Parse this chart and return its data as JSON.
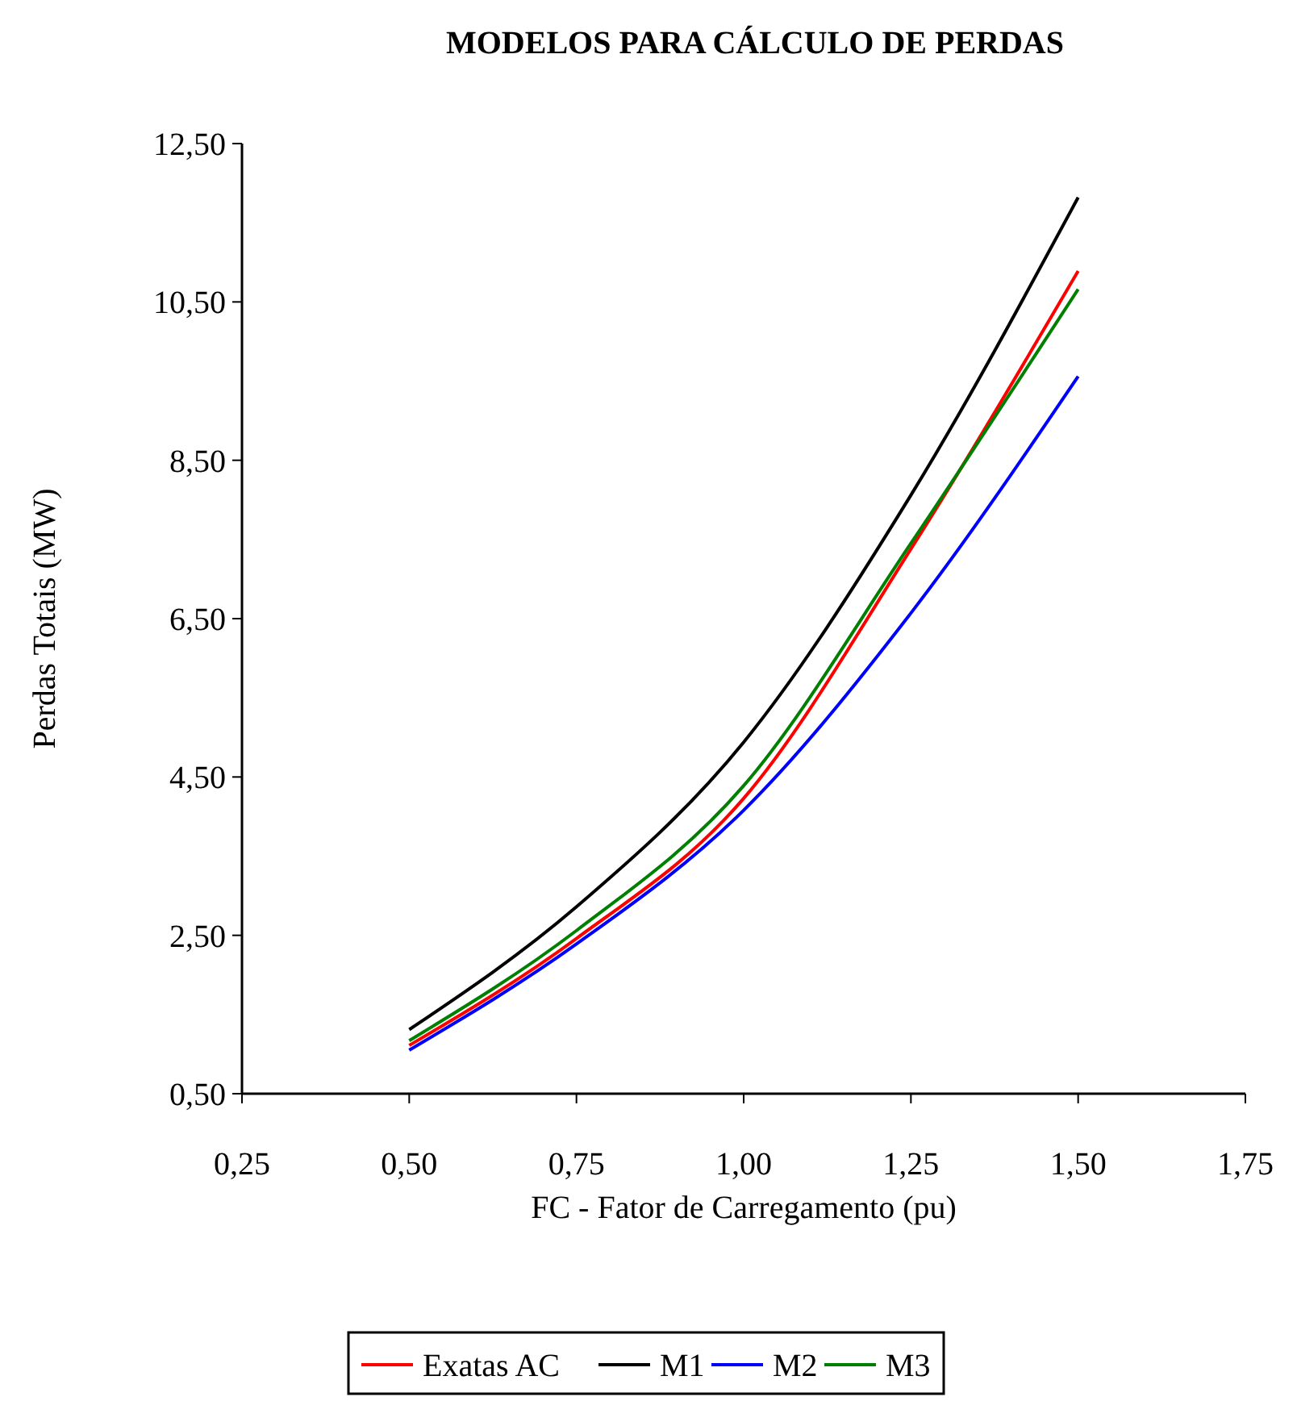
{
  "chart_data": {
    "type": "line",
    "title": "MODELOS PARA CÁLCULO DE PERDAS",
    "xlabel": "FC - Fator de Carregamento (pu)",
    "ylabel": "Perdas Totais (MW)",
    "x": [
      0.5,
      0.75,
      1.0,
      1.25,
      1.5
    ],
    "series": [
      {
        "name": "Exatas AC",
        "color": "#ff0000",
        "values": [
          1.11,
          2.46,
          4.23,
          7.38,
          10.89
        ]
      },
      {
        "name": "M1",
        "color": "#000000",
        "values": [
          1.31,
          2.86,
          4.94,
          8.06,
          11.82
        ]
      },
      {
        "name": "M2",
        "color": "#0000ff",
        "values": [
          1.05,
          2.39,
          4.08,
          6.57,
          9.56
        ]
      },
      {
        "name": "M3",
        "color": "#008000",
        "values": [
          1.17,
          2.56,
          4.39,
          7.45,
          10.66
        ]
      }
    ],
    "xlim": [
      0.25,
      1.75
    ],
    "xticks": [
      {
        "value": 0.25,
        "label": "0,25"
      },
      {
        "value": 0.5,
        "label": "0,50"
      },
      {
        "value": 0.75,
        "label": "0,75"
      },
      {
        "value": 1.0,
        "label": "1,00"
      },
      {
        "value": 1.25,
        "label": "1,25"
      },
      {
        "value": 1.5,
        "label": "1,50"
      },
      {
        "value": 1.75,
        "label": "1,75"
      }
    ],
    "ylim": [
      0.5,
      12.5
    ],
    "yticks": [
      {
        "value": 0.5,
        "label": "0,50"
      },
      {
        "value": 2.5,
        "label": "2,50"
      },
      {
        "value": 4.5,
        "label": "4,50"
      },
      {
        "value": 6.5,
        "label": "6,50"
      },
      {
        "value": 8.5,
        "label": "8,50"
      },
      {
        "value": 10.5,
        "label": "10,50"
      },
      {
        "value": 12.5,
        "label": "12,50"
      }
    ],
    "grid": false,
    "legend": "bottom",
    "marker": "none",
    "line_style": "solid"
  }
}
